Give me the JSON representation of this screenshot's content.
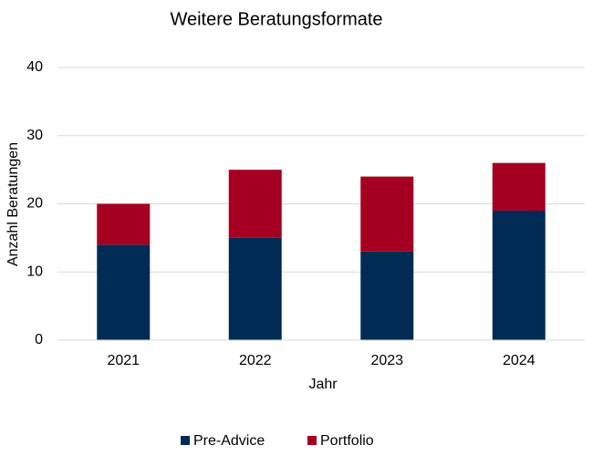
{
  "chart_data": {
    "type": "bar",
    "stacked": true,
    "title": "Weitere Beratungsformate",
    "x_label": "Jahr",
    "y_label": "Anzahl  Beratungen",
    "categories": [
      "2021",
      "2022",
      "2023",
      "2024"
    ],
    "series": [
      {
        "name": "Pre-Advice",
        "color": "#002b54",
        "values": [
          14,
          15,
          13,
          19
        ]
      },
      {
        "name": "Portfolio",
        "color": "#a50021",
        "values": [
          6,
          10,
          11,
          7
        ]
      }
    ],
    "ylim": [
      0,
      40
    ],
    "yticks": [
      0,
      10,
      20,
      30,
      40
    ],
    "grid": true,
    "legend": "bottom"
  }
}
